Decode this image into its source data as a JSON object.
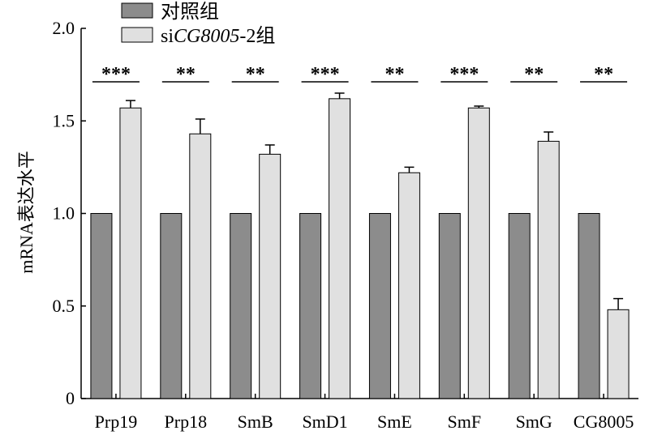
{
  "chart_data": {
    "type": "bar",
    "title": "",
    "xlabel": "",
    "ylabel": "mRNA表达水平",
    "ylim": [
      0,
      2.0
    ],
    "yticks": [
      "0",
      "0.5",
      "1.0",
      "1.5",
      "2.0"
    ],
    "ytick_values": [
      0,
      0.5,
      1.0,
      1.5,
      2.0
    ],
    "categories": [
      "Prp19",
      "Prp18",
      "SmB",
      "SmD1",
      "SmE",
      "SmF",
      "SmG",
      "CG8005"
    ],
    "series": [
      {
        "name": "对照组",
        "color": "#8c8c8c",
        "values": [
          1.0,
          1.0,
          1.0,
          1.0,
          1.0,
          1.0,
          1.0,
          1.0
        ],
        "errors": [
          0,
          0,
          0,
          0,
          0,
          0,
          0,
          0
        ]
      },
      {
        "name": "siCG8005-2组",
        "name_parts": {
          "prefix": "si",
          "italic": "CG8005",
          "suffix": "-2组"
        },
        "color": "#e0e0e0",
        "values": [
          1.57,
          1.43,
          1.32,
          1.62,
          1.22,
          1.57,
          1.39,
          0.48
        ],
        "errors": [
          0.04,
          0.08,
          0.05,
          0.03,
          0.03,
          0.01,
          0.05,
          0.06
        ]
      }
    ],
    "significance": [
      "***",
      "**",
      "**",
      "***",
      "**",
      "***",
      "**",
      "**"
    ],
    "legend_position": "top-left",
    "grid": false
  }
}
